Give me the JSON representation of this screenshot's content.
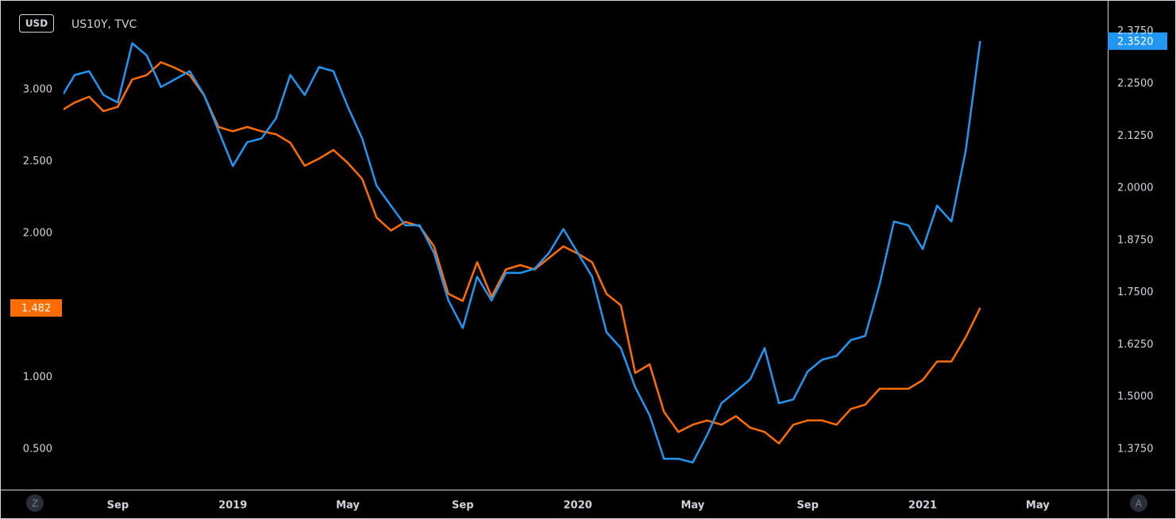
{
  "chart_data": {
    "type": "line",
    "title": "US10Y, TVC",
    "currency": "USD",
    "buttons": [
      "Z",
      "A"
    ],
    "grid": false,
    "categories": [
      null,
      null,
      null,
      null,
      "Sep",
      null,
      null,
      null,
      null,
      null,
      null,
      null,
      "2019",
      null,
      null,
      null,
      null,
      null,
      null,
      null,
      "May",
      null,
      null,
      null,
      null,
      null,
      null,
      null,
      "Sep",
      null,
      null,
      null,
      null,
      null,
      null,
      null,
      "2020",
      null,
      null,
      null,
      null,
      null,
      null,
      null,
      "May",
      null,
      null,
      null,
      null,
      null,
      null,
      null,
      "Sep",
      null,
      null,
      null,
      null,
      null,
      null,
      null,
      "2021",
      null,
      null,
      null,
      null,
      null,
      null,
      null,
      "May",
      null,
      null
    ],
    "ylim": [
      0.219,
      3.595
    ],
    "yticks": [
      {
        "value": 0.5,
        "label": "0.500"
      },
      {
        "value": 1,
        "label": "1.000"
      },
      {
        "value": 2,
        "label": "2.000"
      },
      {
        "value": 2.5,
        "label": "2.500"
      },
      {
        "value": 3,
        "label": "3.000"
      }
    ],
    "y2lim": [
      1.278,
      2.441
    ],
    "y2ticks": [
      {
        "value": 1.375,
        "label": "1.3750"
      },
      {
        "value": 1.5,
        "label": "1.5000"
      },
      {
        "value": 1.625,
        "label": "1.6250"
      },
      {
        "value": 1.75,
        "label": "1.7500"
      },
      {
        "value": 1.875,
        "label": "1.8750"
      },
      {
        "value": 2,
        "label": "2.0000"
      },
      {
        "value": 2.125,
        "label": "2.1250"
      },
      {
        "value": 2.25,
        "label": "2.2500"
      },
      {
        "value": 2.375,
        "label": "2.3750"
      }
    ],
    "series": [
      {
        "color": "#ff6d00",
        "axis": "y",
        "values": [
          2.85,
          2.91,
          2.95,
          2.85,
          2.88,
          3.07,
          3.1,
          3.19,
          3.15,
          3.1,
          2.96,
          2.74,
          2.71,
          2.74,
          2.71,
          2.69,
          2.63,
          2.47,
          2.52,
          2.58,
          2.49,
          2.38,
          2.11,
          2.02,
          2.08,
          2.05,
          1.91,
          1.58,
          1.53,
          1.8,
          1.56,
          1.75,
          1.78,
          1.75,
          1.83,
          1.91,
          1.86,
          1.8,
          1.58,
          1.5,
          1.03,
          1.09,
          0.76,
          0.62,
          0.67,
          0.7,
          0.67,
          0.73,
          0.65,
          0.62,
          0.54,
          0.67,
          0.7,
          0.7,
          0.67,
          0.78,
          0.81,
          0.92,
          0.92,
          0.92,
          0.98,
          1.11,
          1.11,
          1.28,
          1.482,
          null,
          null,
          null,
          null,
          null,
          null
        ],
        "value_labels": [
          null,
          null,
          null,
          null,
          null,
          null,
          null,
          null,
          null,
          null,
          null,
          null,
          null,
          null,
          null,
          null,
          null,
          null,
          null,
          null,
          null,
          null,
          null,
          null,
          null,
          null,
          null,
          null,
          null,
          null,
          null,
          null,
          null,
          null,
          null,
          null,
          null,
          null,
          null,
          null,
          null,
          null,
          null,
          null,
          null,
          null,
          null,
          null,
          null,
          null,
          null,
          null,
          null,
          null,
          null,
          null,
          null,
          null,
          null,
          null,
          null,
          null,
          null,
          null,
          "1.482",
          null,
          null,
          null,
          null,
          null,
          null
        ]
      },
      {
        "color": "#2196f3",
        "axis": "y2",
        "values": [
          2.214,
          2.271,
          2.28,
          2.223,
          2.205,
          2.347,
          2.318,
          2.242,
          2.261,
          2.28,
          2.223,
          2.138,
          2.053,
          2.11,
          2.119,
          2.167,
          2.271,
          2.223,
          2.29,
          2.28,
          2.195,
          2.119,
          2.006,
          1.958,
          1.911,
          1.911,
          1.845,
          1.731,
          1.665,
          1.788,
          1.731,
          1.797,
          1.797,
          1.807,
          1.845,
          1.902,
          1.845,
          1.788,
          1.655,
          1.617,
          1.523,
          1.456,
          1.352,
          1.352,
          1.343,
          1.409,
          1.485,
          1.513,
          1.542,
          1.617,
          1.485,
          1.494,
          1.561,
          1.589,
          1.598,
          1.636,
          1.646,
          1.769,
          1.92,
          1.911,
          1.854,
          1.958,
          1.92,
          2.091,
          2.352,
          null,
          null,
          null,
          null,
          null,
          null
        ],
        "value_labels": [
          null,
          null,
          null,
          null,
          null,
          null,
          null,
          null,
          null,
          null,
          null,
          null,
          null,
          null,
          null,
          null,
          null,
          null,
          null,
          null,
          null,
          null,
          null,
          null,
          null,
          null,
          null,
          null,
          null,
          null,
          null,
          null,
          null,
          null,
          null,
          null,
          null,
          null,
          null,
          null,
          null,
          null,
          null,
          null,
          null,
          null,
          null,
          null,
          null,
          null,
          null,
          null,
          null,
          null,
          null,
          null,
          null,
          null,
          null,
          null,
          null,
          null,
          null,
          null,
          "2.3520",
          null,
          null,
          null,
          null,
          null,
          null
        ]
      }
    ]
  }
}
